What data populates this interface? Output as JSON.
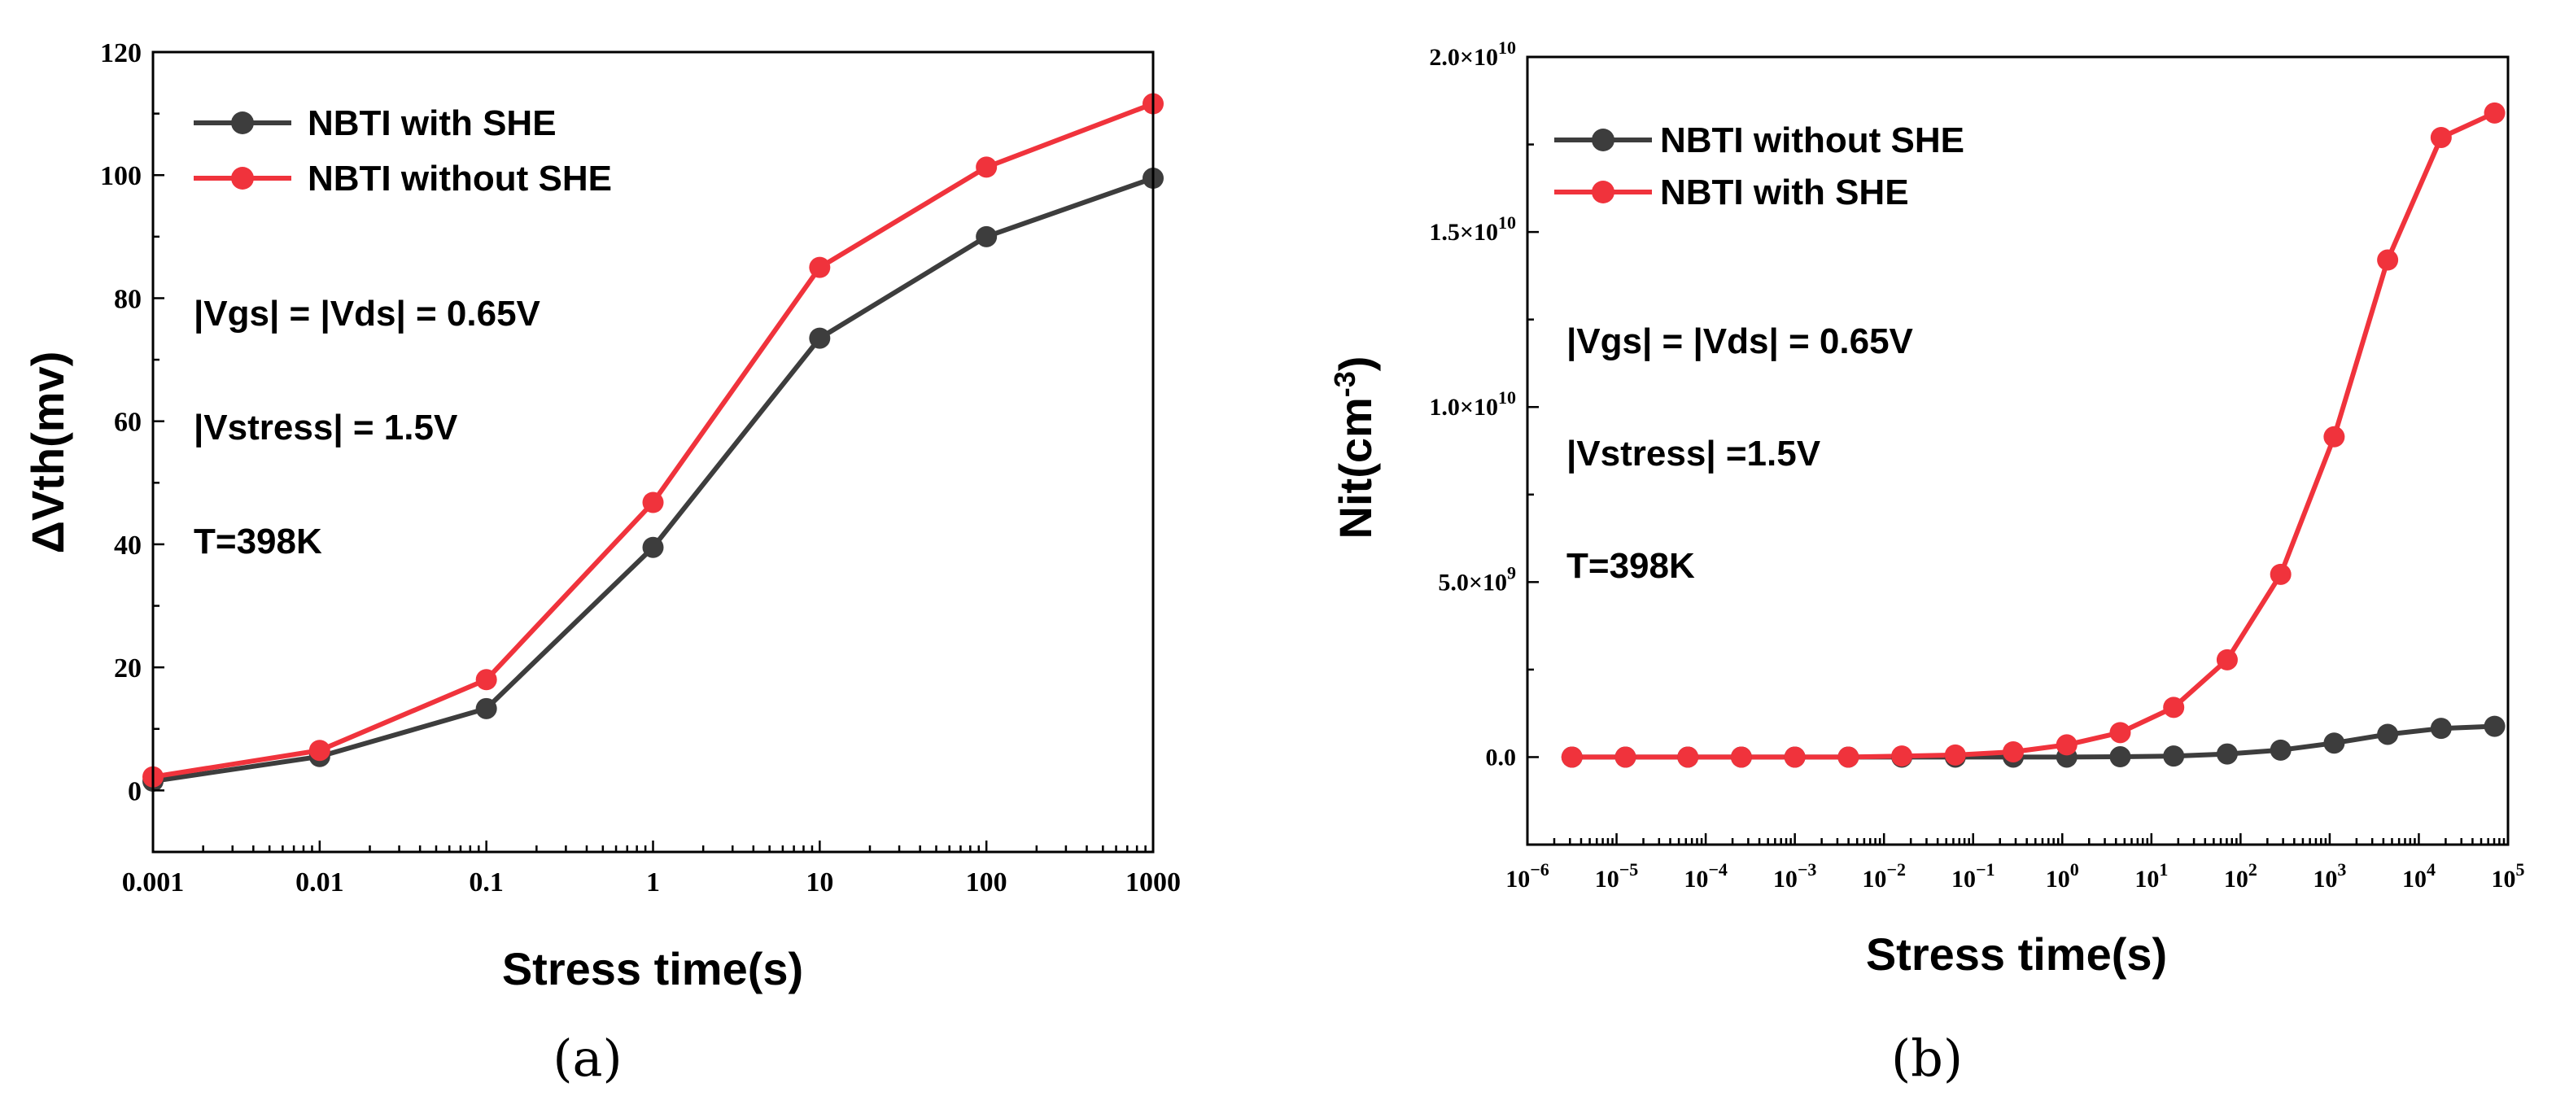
{
  "colors": {
    "gray": "#3d3d3d",
    "red": "#f0333c",
    "axis": "#000000"
  },
  "chart_data": [
    {
      "panel_label": "(a)",
      "type": "line",
      "xscale": "log",
      "x": [
        0.001,
        0.01,
        0.1,
        1,
        10,
        100,
        1000
      ],
      "xlim": [
        0.001,
        1000
      ],
      "ylim": [
        -10,
        120
      ],
      "xticks": [
        0.001,
        0.01,
        0.1,
        1,
        10,
        100,
        1000
      ],
      "xtick_labels": [
        "0.001",
        "0.01",
        "0.1",
        "1",
        "10",
        "100",
        "1000"
      ],
      "yticks": [
        0,
        20,
        40,
        60,
        80,
        100,
        120
      ],
      "ytick_labels": [
        "0",
        "20",
        "40",
        "60",
        "80",
        "100",
        "120"
      ],
      "xlabel": "Stress time(s)",
      "ylabel": "ΔVth(mv)",
      "series": [
        {
          "name": "NBTI with SHE",
          "color": "#3d3d3d",
          "values": [
            1.5,
            5.5,
            13.3,
            39.5,
            73.5,
            90.0,
            99.5
          ]
        },
        {
          "name": "NBTI without SHE",
          "color": "#f0333c",
          "values": [
            2.2,
            6.5,
            18.0,
            46.8,
            85.0,
            101.3,
            111.6
          ]
        }
      ],
      "legend_position": "top-left",
      "annotations": [
        "|Vgs| = |Vds| = 0.65V",
        "|Vstress| = 1.5V",
        "T=398K"
      ]
    },
    {
      "panel_label": "(b)",
      "type": "line",
      "xscale": "log",
      "x_exponents": [
        -5.5,
        -4.9,
        -4.2,
        -3.6,
        -3.0,
        -2.4,
        -1.8,
        -1.2,
        -0.55,
        0.05,
        0.65,
        1.25,
        1.85,
        2.45,
        3.05,
        3.65,
        4.25,
        4.85
      ],
      "xlim_exponents": [
        -6,
        5
      ],
      "ylim": [
        -2500000000.0,
        20000000000.0
      ],
      "xtick_exponents": [
        "−6",
        "−5",
        "−4",
        "−3",
        "−2",
        "−1",
        "0",
        "1",
        "2",
        "3",
        "4",
        "5"
      ],
      "xtick_base": "10",
      "yticks": [
        0,
        5000000000.0,
        10000000000.0,
        15000000000.0,
        20000000000.0
      ],
      "ytick_labels": [
        {
          "mant": "0.0",
          "exp": ""
        },
        {
          "mant": "5.0×10",
          "exp": "9"
        },
        {
          "mant": "1.0×10",
          "exp": "10"
        },
        {
          "mant": "1.5×10",
          "exp": "10"
        },
        {
          "mant": "2.0×10",
          "exp": "10"
        }
      ],
      "xlabel": "Stress time(s)",
      "ylabel_main": "Nit(cm",
      "ylabel_sup": "-3",
      "ylabel_end": ")",
      "series": [
        {
          "name": "NBTI without SHE",
          "color": "#3d3d3d",
          "values": [
            0,
            0,
            0,
            0,
            0,
            0,
            0,
            0,
            0,
            0,
            10000000.0,
            30000000.0,
            90000000.0,
            200000000.0,
            400000000.0,
            650000000.0,
            820000000.0,
            880000000.0
          ]
        },
        {
          "name": "NBTI with SHE",
          "color": "#f0333c",
          "values": [
            0,
            0,
            0,
            0,
            0,
            0,
            30000000.0,
            60000000.0,
            150000000.0,
            350000000.0,
            700000000.0,
            1420000000.0,
            2780000000.0,
            5220000000.0,
            9150000000.0,
            14200000000.0,
            17700000000.0,
            18400000000.0
          ]
        }
      ],
      "legend_position": "top-left",
      "annotations": [
        "|Vgs| = |Vds| = 0.65V",
        "|Vstress| =1.5V",
        "T=398K"
      ]
    }
  ]
}
